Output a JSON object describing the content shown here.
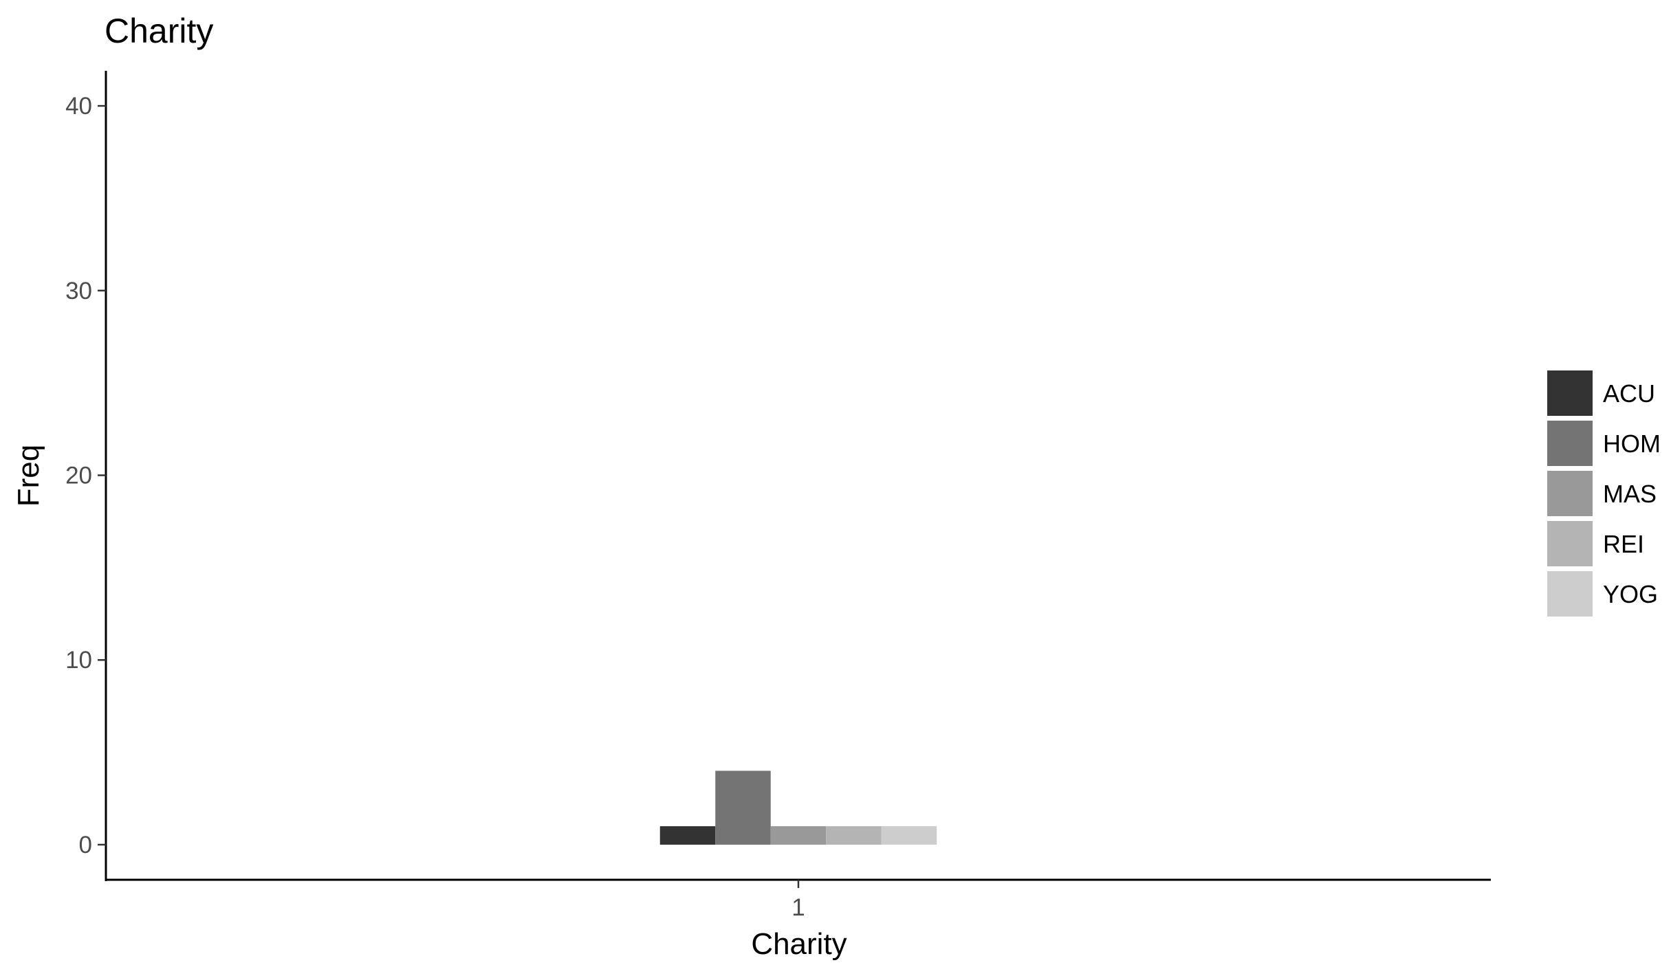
{
  "chart_data": {
    "type": "bar",
    "title": "Charity",
    "xlabel": "Charity",
    "ylabel": "Freq",
    "categories": [
      "1"
    ],
    "series": [
      {
        "name": "ACU",
        "values": [
          1
        ],
        "color": "#333333"
      },
      {
        "name": "HOM",
        "values": [
          4
        ],
        "color": "#747474"
      },
      {
        "name": "MAS",
        "values": [
          1
        ],
        "color": "#999999"
      },
      {
        "name": "REI",
        "values": [
          1
        ],
        "color": "#b4b4b4"
      },
      {
        "name": "YOG",
        "values": [
          1
        ],
        "color": "#cdcdcd"
      }
    ],
    "yticks": [
      0,
      10,
      20,
      30,
      40
    ],
    "ylim": [
      -1.9,
      41.9
    ],
    "grid": false,
    "legend_position": "right"
  }
}
